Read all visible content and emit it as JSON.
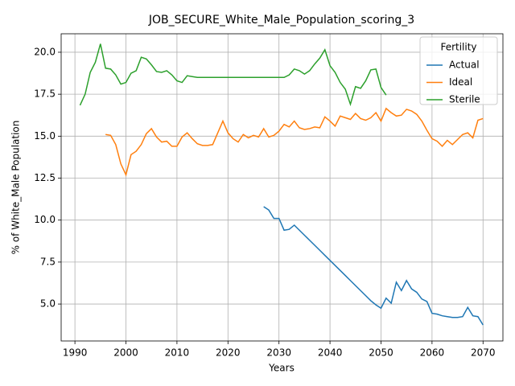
{
  "chart_data": {
    "type": "line",
    "title": "JOB_SECURE_White_Male_Population_scoring_3",
    "xlabel": "Years",
    "ylabel": "% of White_Male Population",
    "legend_title": "Fertility",
    "legend": "upper right",
    "grid": true,
    "x": [
      1991,
      1992,
      1993,
      1994,
      1995,
      1996,
      1997,
      1998,
      1999,
      2000,
      2001,
      2002,
      2003,
      2004,
      2005,
      2006,
      2007,
      2008,
      2009,
      2010,
      2011,
      2012,
      2013,
      2014,
      2015,
      2016,
      2017,
      2018,
      2019,
      2020,
      2021,
      2022,
      2023,
      2024,
      2025,
      2026,
      2027,
      2028,
      2029,
      2030,
      2031,
      2032,
      2033,
      2034,
      2035,
      2036,
      2037,
      2038,
      2039,
      2040,
      2041,
      2042,
      2043,
      2044,
      2045,
      2046,
      2047,
      2048,
      2049,
      2050,
      2051,
      2052,
      2053,
      2054,
      2055,
      2056,
      2057,
      2058,
      2059,
      2060,
      2061,
      2062,
      2063,
      2064,
      2065,
      2066,
      2067,
      2068,
      2069,
      2070
    ],
    "series": [
      {
        "name": "Actual",
        "color": "#1f77b4",
        "values": [
          null,
          null,
          null,
          null,
          null,
          null,
          null,
          null,
          null,
          null,
          null,
          null,
          null,
          null,
          null,
          null,
          null,
          null,
          null,
          null,
          null,
          null,
          null,
          null,
          null,
          null,
          null,
          null,
          null,
          null,
          null,
          null,
          null,
          null,
          null,
          null,
          10.8,
          10.6,
          10.1,
          10.1,
          9.4,
          9.45,
          9.7,
          9.4,
          9.1,
          8.8,
          8.5,
          8.2,
          7.9,
          7.6,
          7.3,
          7.0,
          6.7,
          6.4,
          6.1,
          5.8,
          5.5,
          5.2,
          4.95,
          4.75,
          5.35,
          5.05,
          6.3,
          5.8,
          6.4,
          5.9,
          5.7,
          5.3,
          5.15,
          4.45,
          4.4,
          4.3,
          4.25,
          4.2,
          4.2,
          4.25,
          4.8,
          4.3,
          4.25,
          3.75
        ]
      },
      {
        "name": "Ideal",
        "color": "#ff7f0e",
        "values": [
          null,
          null,
          null,
          null,
          null,
          15.1,
          15.05,
          14.5,
          13.35,
          12.7,
          13.9,
          14.1,
          14.5,
          15.15,
          15.45,
          14.95,
          14.65,
          14.7,
          14.4,
          14.4,
          14.95,
          15.2,
          14.85,
          14.55,
          14.45,
          14.45,
          14.5,
          15.2,
          15.9,
          15.2,
          14.85,
          14.65,
          15.1,
          14.9,
          15.05,
          14.95,
          15.45,
          14.95,
          15.05,
          15.3,
          15.7,
          15.55,
          15.9,
          15.5,
          15.4,
          15.45,
          15.55,
          15.5,
          16.15,
          15.9,
          15.6,
          16.2,
          16.1,
          16.0,
          16.35,
          16.05,
          15.95,
          16.1,
          16.4,
          15.9,
          16.65,
          16.4,
          16.2,
          16.25,
          16.6,
          16.5,
          16.3,
          15.9,
          15.35,
          14.85,
          14.7,
          14.4,
          14.75,
          14.5,
          14.8,
          15.1,
          15.2,
          14.9,
          15.95,
          16.05
        ]
      },
      {
        "name": "Sterile",
        "color": "#2ca02c",
        "values": [
          16.84,
          17.5,
          18.8,
          19.4,
          20.5,
          19.05,
          19.0,
          18.65,
          18.1,
          18.2,
          18.75,
          18.9,
          19.7,
          19.6,
          19.25,
          18.85,
          18.8,
          18.9,
          18.65,
          18.3,
          18.2,
          18.6,
          18.55,
          18.5,
          18.5,
          18.5,
          18.5,
          18.5,
          18.5,
          18.5,
          18.5,
          18.5,
          18.5,
          18.5,
          18.5,
          18.5,
          18.5,
          18.5,
          18.5,
          18.5,
          18.5,
          18.65,
          19.0,
          18.9,
          18.7,
          18.9,
          19.3,
          19.65,
          20.15,
          19.2,
          18.8,
          18.2,
          17.8,
          16.9,
          17.95,
          17.85,
          18.3,
          18.95,
          19.0,
          17.9,
          17.45,
          null,
          null,
          null,
          null,
          null,
          null,
          null,
          null,
          null,
          null,
          null,
          null,
          null,
          null,
          null,
          null,
          null,
          null,
          null
        ]
      }
    ],
    "xlim": [
      1987.3,
      2073.9
    ],
    "ylim": [
      2.8,
      21.1
    ],
    "xticks": [
      1990,
      2000,
      2010,
      2020,
      2030,
      2040,
      2050,
      2060,
      2070
    ],
    "yticks": [
      {
        "value": 5.0,
        "label": "5.0"
      },
      7.5,
      {
        "value": 10.0,
        "label": "10.0"
      },
      12.5,
      {
        "value": 15.0,
        "label": "15.0"
      },
      17.5,
      {
        "value": 20.0,
        "label": "20.0"
      }
    ]
  }
}
